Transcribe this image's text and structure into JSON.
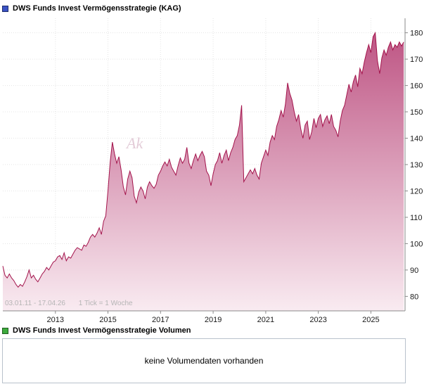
{
  "panel1": {
    "title": "DWS Funds Invest Vermögensstrategie (KAG)",
    "marker_color": "#3a52c4"
  },
  "panel2": {
    "title": "DWS Funds Invest Vermögensstrategie Volumen",
    "marker_color": "#3dab3d",
    "message": "keine Volumendaten vorhanden"
  },
  "chart": {
    "watermark": "Ak",
    "footer": {
      "date_range": "03.01.11 - 17.04.26",
      "tick_info": "1 Tick = 1 Woche"
    },
    "colors": {
      "line": "#a3134b",
      "fill_top": "#bb4d7e",
      "fill_bottom": "#f9ebf1",
      "grid": "#e4e4e4",
      "axis": "#8a8a8a",
      "label": "#1a1a1a",
      "footer_text": "#b5b5b5"
    }
  },
  "chart_data": {
    "type": "area",
    "title": "DWS Funds Invest Vermögensstrategie (KAG)",
    "xlabel": "",
    "ylabel": "",
    "x_unit": "decimal_year",
    "x_start": 2011.0,
    "x_step_years": 0.0833333,
    "xlim": [
      2011.0,
      2026.3
    ],
    "ylim": [
      74.5,
      185.5
    ],
    "x_ticks": [
      2013,
      2015,
      2017,
      2019,
      2021,
      2023,
      2025
    ],
    "y_ticks": [
      80,
      90,
      100,
      110,
      120,
      130,
      140,
      150,
      160,
      170,
      180
    ],
    "grid": true,
    "legend": false,
    "values": [
      91.5,
      88.0,
      87.0,
      88.5,
      87.0,
      86.0,
      84.5,
      83.5,
      84.5,
      83.8,
      85.5,
      87.5,
      90.0,
      87.0,
      88.0,
      86.5,
      85.5,
      87.0,
      88.5,
      89.5,
      91.0,
      90.0,
      91.5,
      93.0,
      93.5,
      95.0,
      95.5,
      94.0,
      96.5,
      93.5,
      95.0,
      94.5,
      96.0,
      97.5,
      98.5,
      98.0,
      97.5,
      99.5,
      99.0,
      100.5,
      102.5,
      103.5,
      102.5,
      104.0,
      106.0,
      103.5,
      108.5,
      110.5,
      120.0,
      131.0,
      138.5,
      134.0,
      130.5,
      133.0,
      128.0,
      121.5,
      118.5,
      124.5,
      127.5,
      125.0,
      118.0,
      115.5,
      119.5,
      121.5,
      120.0,
      117.0,
      121.5,
      123.5,
      122.0,
      121.0,
      122.5,
      126.0,
      127.5,
      129.5,
      131.0,
      129.5,
      132.0,
      129.0,
      127.5,
      126.0,
      129.5,
      132.5,
      130.5,
      132.0,
      136.5,
      130.5,
      128.5,
      131.5,
      134.0,
      131.5,
      133.5,
      135.0,
      133.0,
      127.5,
      126.0,
      122.0,
      126.5,
      130.0,
      131.5,
      134.5,
      130.5,
      133.5,
      135.5,
      131.5,
      134.5,
      136.5,
      139.5,
      141.0,
      145.0,
      152.5,
      123.5,
      125.0,
      126.5,
      128.0,
      126.5,
      128.5,
      126.0,
      124.5,
      130.5,
      133.0,
      135.5,
      133.5,
      138.5,
      141.0,
      139.5,
      144.5,
      147.0,
      150.5,
      148.0,
      153.0,
      161.0,
      157.0,
      154.5,
      150.0,
      146.5,
      149.0,
      143.5,
      140.0,
      145.0,
      146.5,
      139.5,
      142.5,
      147.5,
      144.0,
      147.5,
      149.0,
      144.5,
      147.0,
      148.5,
      145.5,
      149.0,
      144.5,
      143.0,
      140.5,
      146.5,
      150.5,
      152.5,
      156.5,
      160.5,
      157.5,
      161.5,
      164.0,
      159.5,
      166.5,
      164.5,
      169.0,
      172.5,
      175.5,
      172.5,
      178.5,
      180.0,
      169.5,
      164.5,
      170.5,
      173.5,
      171.5,
      174.5,
      176.5,
      173.5,
      175.5,
      174.5,
      176.5,
      175.0,
      176.5
    ]
  }
}
